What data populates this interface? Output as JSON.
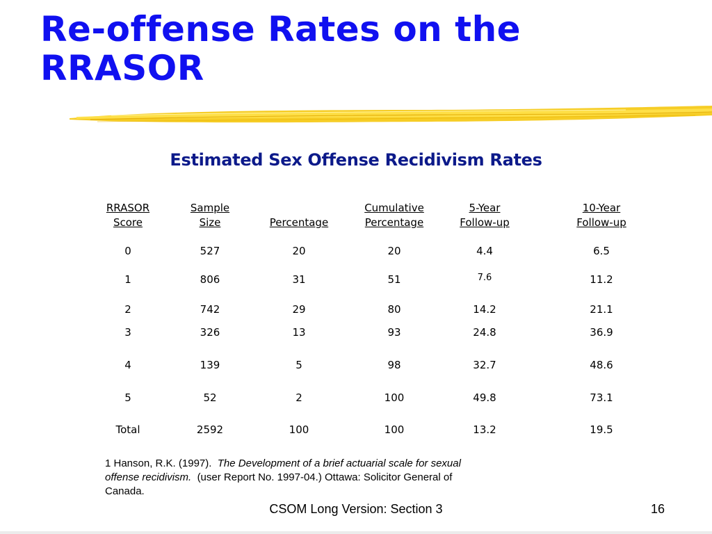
{
  "slide": {
    "title_line1": "Re-offense Rates on the",
    "title_line2": "RRASOR",
    "title_color": "#1010f0",
    "accent_color": "#f5c400"
  },
  "table": {
    "heading": "Estimated Sex Offense Recidivism Rates",
    "columns": [
      {
        "line1": "RRASOR",
        "line2": "Score"
      },
      {
        "line1": "Sample",
        "line2": "Size"
      },
      {
        "line1": "",
        "line2": "Percentage"
      },
      {
        "line1": "Cumulative",
        "line2": "Percentage"
      },
      {
        "line1": "5-Year",
        "line2": "Follow-up"
      },
      {
        "line1": "10-Year",
        "line2": "Follow-up"
      }
    ],
    "rows": [
      [
        "0",
        "527",
        "20",
        "20",
        "4.4",
        "6.5"
      ],
      [
        "1",
        "806",
        "31",
        "51",
        "7.6",
        "11.2"
      ],
      [
        "2",
        "742",
        "29",
        "80",
        "14.2",
        "21.1"
      ],
      [
        "3",
        "326",
        "13",
        "93",
        "24.8",
        "36.9"
      ],
      [
        "4",
        "139",
        "5",
        "98",
        "32.7",
        "48.6"
      ],
      [
        "5",
        "52",
        "2",
        "100",
        "49.8",
        "73.1"
      ],
      [
        "Total",
        "2592",
        "100",
        "100",
        "13.2",
        "19.5"
      ]
    ]
  },
  "footnote": {
    "prefix": "1 Hanson, R.K. (1997).",
    "title": "The Development of a brief actuarial scale for sexual offense recidivism.",
    "suffix": "(user Report No. 1997-04.) Ottawa: Solicitor General of Canada."
  },
  "footer": {
    "center_text": "CSOM Long Version: Section 3",
    "page_number": "16"
  }
}
